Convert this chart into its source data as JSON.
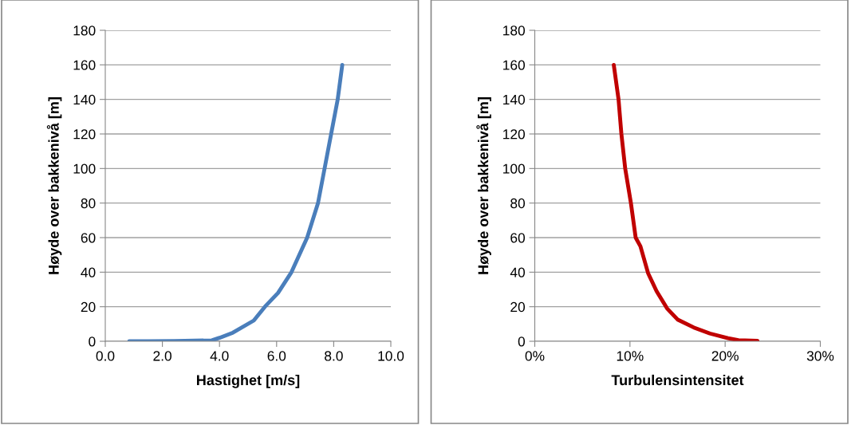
{
  "chart_data": [
    {
      "type": "line",
      "xlabel": "Hastighet [m/s]",
      "ylabel": "Høyde over bakkenivå [m]",
      "xlim": [
        0,
        10
      ],
      "ylim": [
        0,
        180
      ],
      "grid": "y",
      "marker": "none",
      "line_style": "solid",
      "xticks": [
        {
          "value": 0,
          "label": "0.0"
        },
        {
          "value": 2,
          "label": "2.0"
        },
        {
          "value": 4,
          "label": "4.0"
        },
        {
          "value": 6,
          "label": "6.0"
        },
        {
          "value": 8,
          "label": "8.0"
        },
        {
          "value": 10,
          "label": "10.0"
        }
      ],
      "yticks": [
        0,
        20,
        40,
        60,
        80,
        100,
        120,
        140,
        160,
        180
      ],
      "series": [
        {
          "color": "#4a7ebb",
          "x": [
            0.84,
            1.5,
            2.43,
            3.73,
            4.0,
            4.47,
            5.2,
            5.59,
            6.05,
            6.52,
            7.07,
            7.45,
            7.68,
            7.91,
            8.14,
            8.3
          ],
          "values": [
            0,
            0,
            0.2,
            0.5,
            2,
            5,
            12,
            20,
            28,
            40,
            60,
            80,
            100,
            120,
            140,
            160
          ]
        }
      ]
    },
    {
      "type": "line",
      "xlabel": "Turbulensintensitet",
      "ylabel": "Høyde over bakkenivå [m]",
      "xlim": [
        0,
        30
      ],
      "ylim": [
        0,
        180
      ],
      "grid": "y",
      "marker": "none",
      "line_style": "solid",
      "xticks": [
        {
          "value": 0,
          "label": "0%"
        },
        {
          "value": 10,
          "label": "10%"
        },
        {
          "value": 20,
          "label": "20%"
        },
        {
          "value": 30,
          "label": "30%"
        }
      ],
      "yticks": [
        0,
        20,
        40,
        60,
        80,
        100,
        120,
        140,
        160,
        180
      ],
      "series": [
        {
          "color": "#c00000",
          "x": [
            8.3,
            8.8,
            9.1,
            9.5,
            10.1,
            10.6,
            11.1,
            11.9,
            12.8,
            13.9,
            15.0,
            16.7,
            18.4,
            20.3,
            21.4,
            23.4
          ],
          "values": [
            160,
            140,
            120,
            100,
            80,
            60,
            55,
            39.5,
            29,
            19,
            12.6,
            8,
            4.5,
            1.8,
            0.6,
            0.3
          ]
        }
      ]
    }
  ]
}
